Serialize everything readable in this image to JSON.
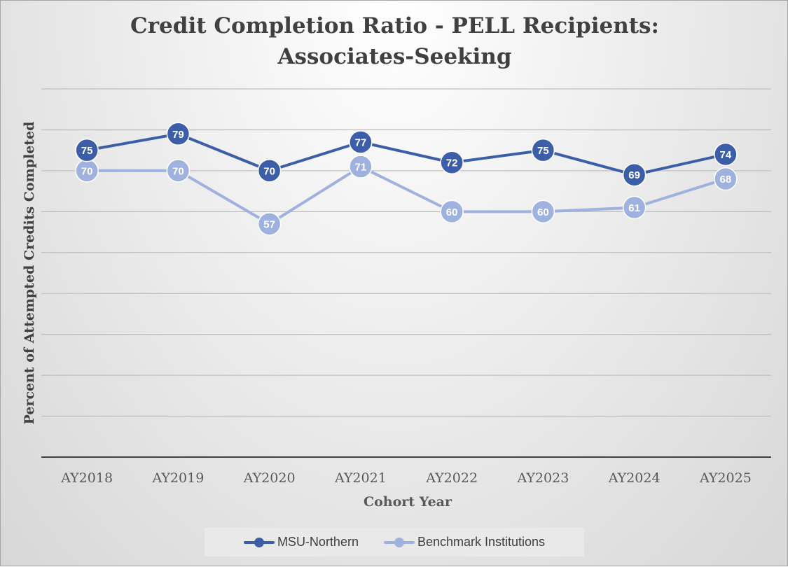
{
  "chart_data": {
    "type": "line",
    "title": [
      "Credit Completion Ratio - PELL Recipients:",
      "Associates-Seeking"
    ],
    "xlabel": "Cohort Year",
    "ylabel": "Percent of  Attempted Credits Completed",
    "categories": [
      "AY2018",
      "AY2019",
      "AY2020",
      "AY2021",
      "AY2022",
      "AY2023",
      "AY2024",
      "AY2025"
    ],
    "ylim": [
      0,
      90
    ],
    "grid": true,
    "legend": "bottom",
    "series": [
      {
        "name": "MSU-Northern",
        "color": "#3c5ea8",
        "values": [
          75,
          79,
          70,
          77,
          72,
          75,
          69,
          74
        ]
      },
      {
        "name": "Benchmark Institutions",
        "color": "#9fb1de",
        "values": [
          70,
          70,
          57,
          71,
          60,
          60,
          61,
          68
        ]
      }
    ]
  }
}
